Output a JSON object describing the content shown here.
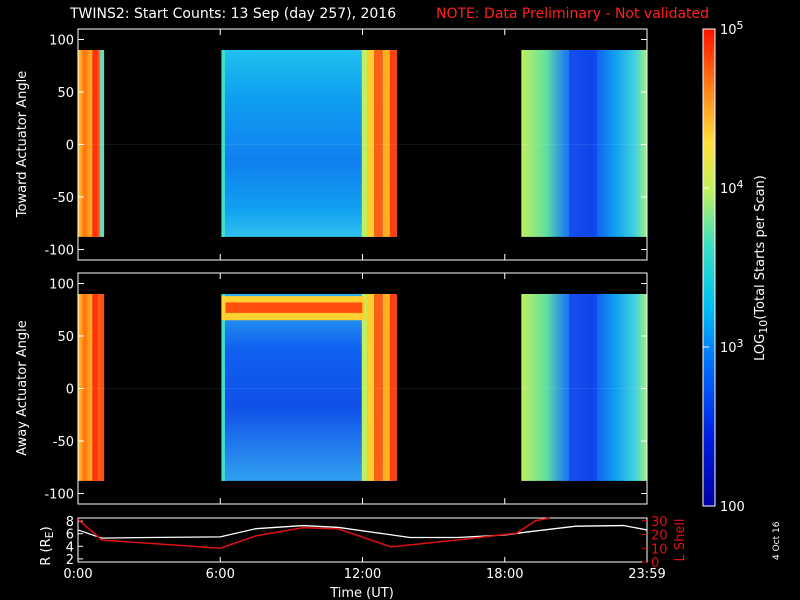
{
  "title": "TWINS2: Start Counts: 13 Sep (day 257), 2016",
  "note": "NOTE: Data Preliminary - Not validated",
  "stamp": "4 Oct 16",
  "colors": {
    "note": "#ff2020",
    "r_line": "#ffffff",
    "lshell_line": "#e01010",
    "background": "#000000"
  },
  "chart_data": [
    {
      "type": "heatmap",
      "panel": "top",
      "ylabel": "Toward Actuator Angle",
      "ylim": [
        -110,
        110
      ],
      "yticks": [
        "100",
        "50",
        "0",
        "-50",
        "-100"
      ],
      "data_y_range": [
        -88,
        90
      ],
      "time_blocks_hours": [
        [
          0.0,
          1.1
        ],
        [
          6.05,
          13.45
        ],
        [
          18.7,
          24.0
        ]
      ],
      "x_unit": "hours UT",
      "x_domain": [
        0,
        24
      ]
    },
    {
      "type": "heatmap",
      "panel": "bottom",
      "ylabel": "Away Actuator Angle",
      "ylim": [
        -110,
        110
      ],
      "yticks": [
        "100",
        "50",
        "0",
        "-50",
        "-100"
      ],
      "data_y_range": [
        -88,
        90
      ],
      "time_blocks_hours": [
        [
          0.0,
          1.1
        ],
        [
          6.05,
          13.45
        ],
        [
          18.7,
          24.0
        ]
      ],
      "x_unit": "hours UT",
      "x_domain": [
        0,
        24
      ]
    },
    {
      "type": "line",
      "panel": "ephemeris",
      "xlabel": "Time (UT)",
      "xticks": [
        "0:00",
        "6:00",
        "12:00",
        "18:00",
        "23:59"
      ],
      "ylabel_left": "R (R",
      "ylabel_left_sub": "E",
      "ylabel_left_end": ")",
      "yticks_left": [
        "8",
        "6",
        "4",
        "2"
      ],
      "ylim_left": [
        1.5,
        8.5
      ],
      "ylabel_right": "L Shell",
      "yticks_right": [
        "30",
        "20",
        "10",
        "0"
      ],
      "ylim_right": [
        0,
        32
      ],
      "series": [
        {
          "name": "R",
          "x": [
            0,
            1,
            3,
            6,
            7.5,
            9.5,
            11,
            12.5,
            14,
            16,
            18,
            19,
            21,
            23,
            24
          ],
          "y": [
            6.6,
            5.3,
            5.4,
            5.5,
            6.8,
            7.3,
            7.0,
            6.2,
            5.4,
            5.4,
            5.8,
            6.3,
            7.2,
            7.3,
            6.6
          ]
        },
        {
          "name": "L Shell",
          "x": [
            0,
            1,
            6,
            7.5,
            9.5,
            11,
            13.2,
            16,
            18.5,
            19.3,
            19.9
          ],
          "y": [
            31,
            16,
            10,
            19,
            25,
            24,
            11,
            16,
            21,
            30,
            32
          ]
        }
      ]
    },
    {
      "type": "colorbar",
      "label_pre": "LOG",
      "label_sub": "10",
      "label_post": "(Total Starts per Scan)",
      "ticks": [
        {
          "base": "10",
          "exp": "5",
          "value": 100000
        },
        {
          "base": "10",
          "exp": "4",
          "value": 10000
        },
        {
          "base": "10",
          "exp": "3",
          "value": 1000
        },
        {
          "base": "100",
          "exp": "",
          "value": 100
        }
      ],
      "range": [
        100,
        100000
      ]
    }
  ]
}
